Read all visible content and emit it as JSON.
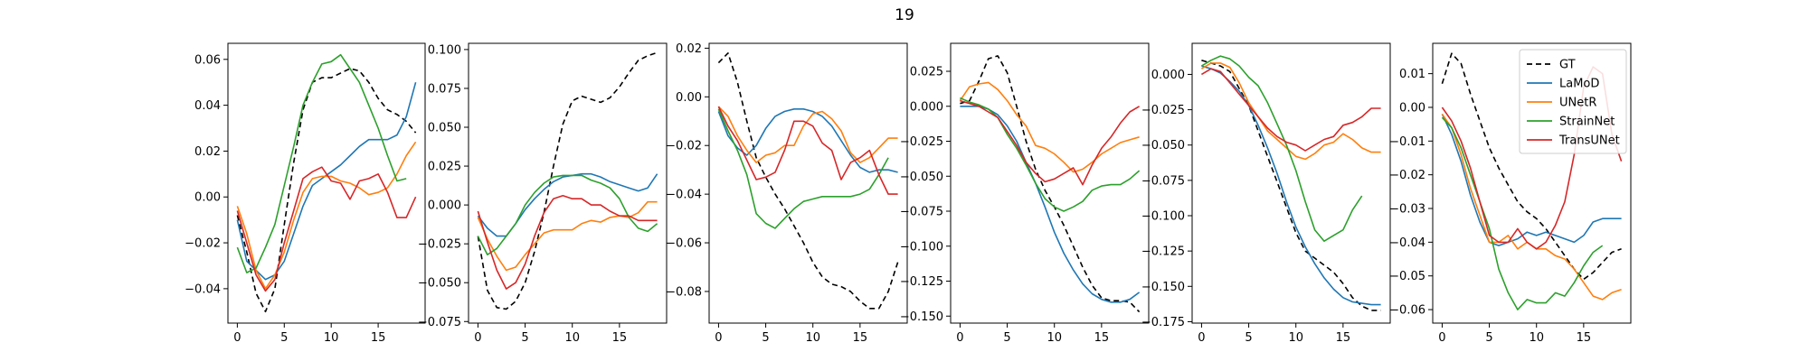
{
  "figure": {
    "title": "19"
  },
  "legend": {
    "location": "upper right of last panel",
    "entries": [
      "GT",
      "LaMoD",
      "UNetR",
      "StrainNet",
      "TransUNet"
    ]
  },
  "styles": {
    "GT": {
      "color": "#000000",
      "dash": "6,4"
    },
    "LaMoD": {
      "color": "#1f77b4",
      "dash": ""
    },
    "UNetR": {
      "color": "#ff7f0e",
      "dash": ""
    },
    "StrainNet": {
      "color": "#2ca02c",
      "dash": ""
    },
    "TransUNet": {
      "color": "#d62728",
      "dash": ""
    }
  },
  "chart_data": [
    {
      "type": "line",
      "x": [
        0,
        1,
        2,
        3,
        4,
        5,
        6,
        7,
        8,
        9,
        10,
        11,
        12,
        13,
        14,
        15,
        16,
        17,
        18,
        19
      ],
      "xlim": [
        -1,
        20
      ],
      "ylim": [
        -0.055,
        0.067
      ],
      "xticks": [
        0,
        5,
        10,
        15
      ],
      "xtick_labels": [
        "0",
        "5",
        "10",
        "15"
      ],
      "yticks": [
        -0.04,
        -0.02,
        0.0,
        0.02,
        0.04,
        0.06
      ],
      "ytick_labels": [
        "−0.04",
        "−0.02",
        "0.00",
        "0.02",
        "0.04",
        "0.06"
      ],
      "series": [
        {
          "name": "GT",
          "values": [
            -0.008,
            -0.024,
            -0.042,
            -0.05,
            -0.04,
            -0.012,
            0.015,
            0.038,
            0.05,
            0.052,
            0.052,
            0.054,
            0.056,
            0.055,
            0.05,
            0.043,
            0.038,
            0.036,
            0.033,
            0.028
          ]
        },
        {
          "name": "LaMoD",
          "values": [
            -0.01,
            -0.028,
            -0.032,
            -0.036,
            -0.034,
            -0.028,
            -0.016,
            -0.004,
            0.005,
            0.008,
            0.011,
            0.014,
            0.018,
            0.022,
            0.025,
            0.025,
            0.025,
            0.027,
            0.035,
            0.05
          ]
        },
        {
          "name": "UNetR",
          "values": [
            -0.004,
            -0.016,
            -0.032,
            -0.04,
            -0.034,
            -0.024,
            -0.01,
            0.002,
            0.008,
            0.009,
            0.009,
            0.007,
            0.006,
            0.004,
            0.001,
            0.002,
            0.004,
            0.01,
            0.018,
            0.024
          ]
        },
        {
          "name": "StrainNet",
          "values": [
            -0.022,
            -0.033,
            -0.031,
            -0.022,
            -0.012,
            0.005,
            0.022,
            0.04,
            0.05,
            0.058,
            0.059,
            0.062,
            0.056,
            0.05,
            0.04,
            0.03,
            0.018,
            0.007,
            0.008,
            null
          ]
        },
        {
          "name": "TransUNet",
          "values": [
            -0.006,
            -0.02,
            -0.034,
            -0.041,
            -0.036,
            -0.02,
            -0.006,
            0.008,
            0.011,
            0.013,
            0.007,
            0.006,
            -0.001,
            0.007,
            0.008,
            0.01,
            0.002,
            -0.009,
            -0.009,
            0.0
          ]
        }
      ]
    },
    {
      "type": "line",
      "x": [
        0,
        1,
        2,
        3,
        4,
        5,
        6,
        7,
        8,
        9,
        10,
        11,
        12,
        13,
        14,
        15,
        16,
        17,
        18,
        19
      ],
      "xlim": [
        -1,
        20
      ],
      "ylim": [
        -0.076,
        0.104
      ],
      "xticks": [
        0,
        5,
        10,
        15
      ],
      "xtick_labels": [
        "0",
        "5",
        "10",
        "15"
      ],
      "yticks": [
        -0.075,
        -0.05,
        -0.025,
        0.0,
        0.025,
        0.05,
        0.075,
        0.1
      ],
      "ytick_labels": [
        "−0.075",
        "−0.050",
        "−0.025",
        "0.000",
        "0.025",
        "0.050",
        "0.075",
        "0.100"
      ],
      "series": [
        {
          "name": "GT",
          "values": [
            -0.02,
            -0.055,
            -0.066,
            -0.067,
            -0.062,
            -0.05,
            -0.03,
            -0.005,
            0.025,
            0.052,
            0.067,
            0.07,
            0.068,
            0.066,
            0.069,
            0.076,
            0.085,
            0.093,
            0.096,
            0.098
          ]
        },
        {
          "name": "LaMoD",
          "values": [
            -0.007,
            -0.015,
            -0.02,
            -0.02,
            -0.012,
            -0.003,
            0.004,
            0.01,
            0.015,
            0.018,
            0.019,
            0.02,
            0.02,
            0.018,
            0.015,
            0.013,
            0.011,
            0.009,
            0.011,
            0.02
          ]
        },
        {
          "name": "UNetR",
          "values": [
            -0.008,
            -0.022,
            -0.033,
            -0.042,
            -0.04,
            -0.032,
            -0.025,
            -0.018,
            -0.016,
            -0.016,
            -0.016,
            -0.012,
            -0.01,
            -0.011,
            -0.008,
            -0.007,
            -0.008,
            -0.005,
            0.002,
            0.002
          ]
        },
        {
          "name": "StrainNet",
          "values": [
            -0.02,
            -0.032,
            -0.028,
            -0.02,
            -0.012,
            0.0,
            0.008,
            0.014,
            0.018,
            0.019,
            0.019,
            0.019,
            0.016,
            0.014,
            0.011,
            0.004,
            -0.008,
            -0.015,
            -0.017,
            -0.012
          ]
        },
        {
          "name": "TransUNet",
          "values": [
            -0.004,
            -0.024,
            -0.042,
            -0.054,
            -0.05,
            -0.038,
            -0.02,
            -0.005,
            0.004,
            0.006,
            0.004,
            0.004,
            0.0,
            0.0,
            -0.004,
            -0.007,
            -0.007,
            -0.01,
            -0.01,
            -0.01
          ]
        }
      ]
    },
    {
      "type": "line",
      "x": [
        0,
        1,
        2,
        3,
        4,
        5,
        6,
        7,
        8,
        9,
        10,
        11,
        12,
        13,
        14,
        15,
        16,
        17,
        18,
        19
      ],
      "xlim": [
        -1,
        20
      ],
      "ylim": [
        -0.093,
        0.022
      ],
      "xticks": [
        0,
        5,
        10,
        15
      ],
      "xtick_labels": [
        "0",
        "5",
        "10",
        "15"
      ],
      "yticks": [
        -0.08,
        -0.06,
        -0.04,
        -0.02,
        0.0,
        0.02
      ],
      "ytick_labels": [
        "−0.08",
        "−0.06",
        "−0.04",
        "−0.02",
        "0.00",
        "0.02"
      ],
      "series": [
        {
          "name": "GT",
          "values": [
            0.014,
            0.018,
            0.006,
            -0.01,
            -0.025,
            -0.033,
            -0.04,
            -0.046,
            -0.053,
            -0.06,
            -0.068,
            -0.074,
            -0.077,
            -0.078,
            -0.08,
            -0.084,
            -0.087,
            -0.087,
            -0.08,
            -0.068
          ]
        },
        {
          "name": "LaMoD",
          "values": [
            -0.006,
            -0.016,
            -0.021,
            -0.024,
            -0.02,
            -0.013,
            -0.008,
            -0.006,
            -0.005,
            -0.005,
            -0.006,
            -0.008,
            -0.012,
            -0.018,
            -0.024,
            -0.029,
            -0.031,
            -0.03,
            -0.03,
            -0.031
          ]
        },
        {
          "name": "UNetR",
          "values": [
            -0.004,
            -0.008,
            -0.016,
            -0.022,
            -0.027,
            -0.024,
            -0.023,
            -0.02,
            -0.02,
            -0.012,
            -0.007,
            -0.006,
            -0.009,
            -0.014,
            -0.023,
            -0.027,
            -0.025,
            -0.021,
            -0.017,
            -0.017
          ]
        },
        {
          "name": "StrainNet",
          "values": [
            -0.005,
            -0.014,
            -0.022,
            -0.032,
            -0.048,
            -0.052,
            -0.054,
            -0.05,
            -0.046,
            -0.043,
            -0.042,
            -0.041,
            -0.041,
            -0.041,
            -0.041,
            -0.04,
            -0.038,
            -0.032,
            -0.025,
            null
          ]
        },
        {
          "name": "TransUNet",
          "values": [
            -0.004,
            -0.012,
            -0.018,
            -0.026,
            -0.034,
            -0.033,
            -0.031,
            -0.022,
            -0.01,
            -0.01,
            -0.012,
            -0.019,
            -0.022,
            -0.034,
            -0.027,
            -0.025,
            -0.022,
            -0.032,
            -0.04,
            -0.04
          ]
        }
      ]
    },
    {
      "type": "line",
      "x": [
        0,
        1,
        2,
        3,
        4,
        5,
        6,
        7,
        8,
        9,
        10,
        11,
        12,
        13,
        14,
        15,
        16,
        17,
        18,
        19
      ],
      "xlim": [
        -1,
        20
      ],
      "ylim": [
        -0.155,
        0.045
      ],
      "xticks": [
        0,
        5,
        10,
        15
      ],
      "xtick_labels": [
        "0",
        "5",
        "10",
        "15"
      ],
      "yticks": [
        -0.15,
        -0.125,
        -0.1,
        -0.075,
        -0.05,
        -0.025,
        0.0,
        0.025
      ],
      "ytick_labels": [
        "−0.150",
        "−0.125",
        "−0.100",
        "−0.075",
        "−0.050",
        "−0.025",
        "0.000",
        "0.025"
      ],
      "series": [
        {
          "name": "GT",
          "values": [
            0.002,
            0.004,
            0.018,
            0.034,
            0.036,
            0.024,
            0.0,
            -0.025,
            -0.045,
            -0.06,
            -0.072,
            -0.085,
            -0.1,
            -0.115,
            -0.128,
            -0.137,
            -0.139,
            -0.139,
            -0.14,
            -0.147
          ]
        },
        {
          "name": "LaMoD",
          "values": [
            0.0,
            0.0,
            0.0,
            -0.002,
            -0.006,
            -0.014,
            -0.025,
            -0.04,
            -0.055,
            -0.072,
            -0.09,
            -0.105,
            -0.117,
            -0.127,
            -0.134,
            -0.138,
            -0.14,
            -0.14,
            -0.138,
            -0.133
          ]
        },
        {
          "name": "UNetR",
          "values": [
            0.004,
            0.014,
            0.016,
            0.017,
            0.012,
            0.004,
            -0.006,
            -0.014,
            -0.028,
            -0.03,
            -0.034,
            -0.04,
            -0.047,
            -0.045,
            -0.04,
            -0.034,
            -0.03,
            -0.026,
            -0.024,
            -0.022
          ]
        },
        {
          "name": "StrainNet",
          "values": [
            0.006,
            0.003,
            0.001,
            -0.002,
            -0.008,
            -0.02,
            -0.03,
            -0.042,
            -0.055,
            -0.066,
            -0.072,
            -0.075,
            -0.072,
            -0.068,
            -0.06,
            -0.057,
            -0.056,
            -0.056,
            -0.052,
            -0.046
          ]
        },
        {
          "name": "TransUNet",
          "values": [
            0.004,
            0.002,
            0.0,
            -0.004,
            -0.008,
            -0.018,
            -0.028,
            -0.04,
            -0.048,
            -0.054,
            -0.052,
            -0.048,
            -0.044,
            -0.056,
            -0.042,
            -0.03,
            -0.022,
            -0.012,
            -0.004,
            0.0
          ]
        }
      ]
    },
    {
      "type": "line",
      "x": [
        0,
        1,
        2,
        3,
        4,
        5,
        6,
        7,
        8,
        9,
        10,
        11,
        12,
        13,
        14,
        15,
        16,
        17,
        18,
        19
      ],
      "xlim": [
        -1,
        20
      ],
      "ylim": [
        -0.176,
        0.022
      ],
      "xticks": [
        0,
        5,
        10,
        15
      ],
      "xtick_labels": [
        "0",
        "5",
        "10",
        "15"
      ],
      "yticks": [
        -0.175,
        -0.15,
        -0.125,
        -0.1,
        -0.075,
        -0.05,
        -0.025,
        0.0
      ],
      "ytick_labels": [
        "−0.175",
        "−0.150",
        "−0.125",
        "−0.100",
        "−0.075",
        "−0.050",
        "−0.025",
        "0.000"
      ],
      "series": [
        {
          "name": "GT",
          "values": [
            0.01,
            0.008,
            0.006,
            0.002,
            -0.01,
            -0.022,
            -0.04,
            -0.058,
            -0.076,
            -0.094,
            -0.112,
            -0.125,
            -0.13,
            -0.135,
            -0.14,
            -0.148,
            -0.158,
            -0.164,
            -0.167,
            -0.167
          ]
        },
        {
          "name": "LaMoD",
          "values": [
            0.006,
            0.004,
            0.001,
            -0.005,
            -0.012,
            -0.022,
            -0.036,
            -0.052,
            -0.07,
            -0.09,
            -0.108,
            -0.122,
            -0.134,
            -0.144,
            -0.152,
            -0.158,
            -0.161,
            -0.162,
            -0.163,
            -0.163
          ]
        },
        {
          "name": "UNetR",
          "values": [
            0.004,
            0.008,
            0.008,
            0.005,
            -0.006,
            -0.02,
            -0.03,
            -0.04,
            -0.046,
            -0.052,
            -0.058,
            -0.06,
            -0.056,
            -0.05,
            -0.048,
            -0.042,
            -0.046,
            -0.052,
            -0.055,
            -0.055
          ]
        },
        {
          "name": "StrainNet",
          "values": [
            0.006,
            0.01,
            0.013,
            0.011,
            0.006,
            -0.002,
            -0.008,
            -0.02,
            -0.035,
            -0.05,
            -0.068,
            -0.09,
            -0.11,
            -0.118,
            -0.114,
            -0.11,
            -0.096,
            -0.086,
            null,
            null
          ]
        },
        {
          "name": "TransUNet",
          "values": [
            0.0,
            0.004,
            0.002,
            -0.006,
            -0.014,
            -0.022,
            -0.03,
            -0.038,
            -0.044,
            -0.048,
            -0.05,
            -0.054,
            -0.05,
            -0.046,
            -0.044,
            -0.036,
            -0.034,
            -0.03,
            -0.024,
            -0.024
          ]
        }
      ]
    },
    {
      "type": "line",
      "x": [
        0,
        1,
        2,
        3,
        4,
        5,
        6,
        7,
        8,
        9,
        10,
        11,
        12,
        13,
        14,
        15,
        16,
        17,
        18,
        19
      ],
      "xlim": [
        -1,
        20
      ],
      "ylim": [
        -0.064,
        0.019
      ],
      "xticks": [
        0,
        5,
        10,
        15
      ],
      "xtick_labels": [
        "0",
        "5",
        "10",
        "15"
      ],
      "yticks": [
        -0.06,
        -0.05,
        -0.04,
        -0.03,
        -0.02,
        -0.01,
        0.0,
        0.01
      ],
      "ytick_labels": [
        "−0.06",
        "−0.05",
        "−0.04",
        "−0.03",
        "−0.02",
        "−0.01",
        "0.00",
        "0.01"
      ],
      "series": [
        {
          "name": "GT",
          "values": [
            0.007,
            0.016,
            0.013,
            0.004,
            -0.004,
            -0.012,
            -0.018,
            -0.023,
            -0.028,
            -0.031,
            -0.033,
            -0.036,
            -0.04,
            -0.044,
            -0.048,
            -0.051,
            -0.049,
            -0.046,
            -0.043,
            -0.042
          ]
        },
        {
          "name": "LaMoD",
          "values": [
            -0.002,
            -0.008,
            -0.016,
            -0.026,
            -0.034,
            -0.04,
            -0.041,
            -0.04,
            -0.039,
            -0.037,
            -0.038,
            -0.037,
            -0.038,
            -0.039,
            -0.04,
            -0.038,
            -0.034,
            -0.033,
            -0.033,
            -0.033
          ]
        },
        {
          "name": "UNetR",
          "values": [
            -0.002,
            -0.006,
            -0.014,
            -0.024,
            -0.032,
            -0.04,
            -0.04,
            -0.038,
            -0.042,
            -0.04,
            -0.042,
            -0.042,
            -0.044,
            -0.045,
            -0.048,
            -0.052,
            -0.056,
            -0.057,
            -0.055,
            -0.054
          ]
        },
        {
          "name": "StrainNet",
          "values": [
            -0.003,
            -0.006,
            -0.012,
            -0.02,
            -0.028,
            -0.036,
            -0.048,
            -0.055,
            -0.06,
            -0.057,
            -0.058,
            -0.058,
            -0.055,
            -0.056,
            -0.052,
            -0.047,
            -0.043,
            -0.041,
            null,
            null
          ]
        },
        {
          "name": "TransUNet",
          "values": [
            0.0,
            -0.004,
            -0.01,
            -0.018,
            -0.028,
            -0.038,
            -0.04,
            -0.04,
            -0.036,
            -0.04,
            -0.042,
            -0.04,
            -0.035,
            -0.028,
            -0.014,
            0.006,
            0.012,
            0.01,
            -0.008,
            -0.016
          ]
        }
      ]
    }
  ]
}
